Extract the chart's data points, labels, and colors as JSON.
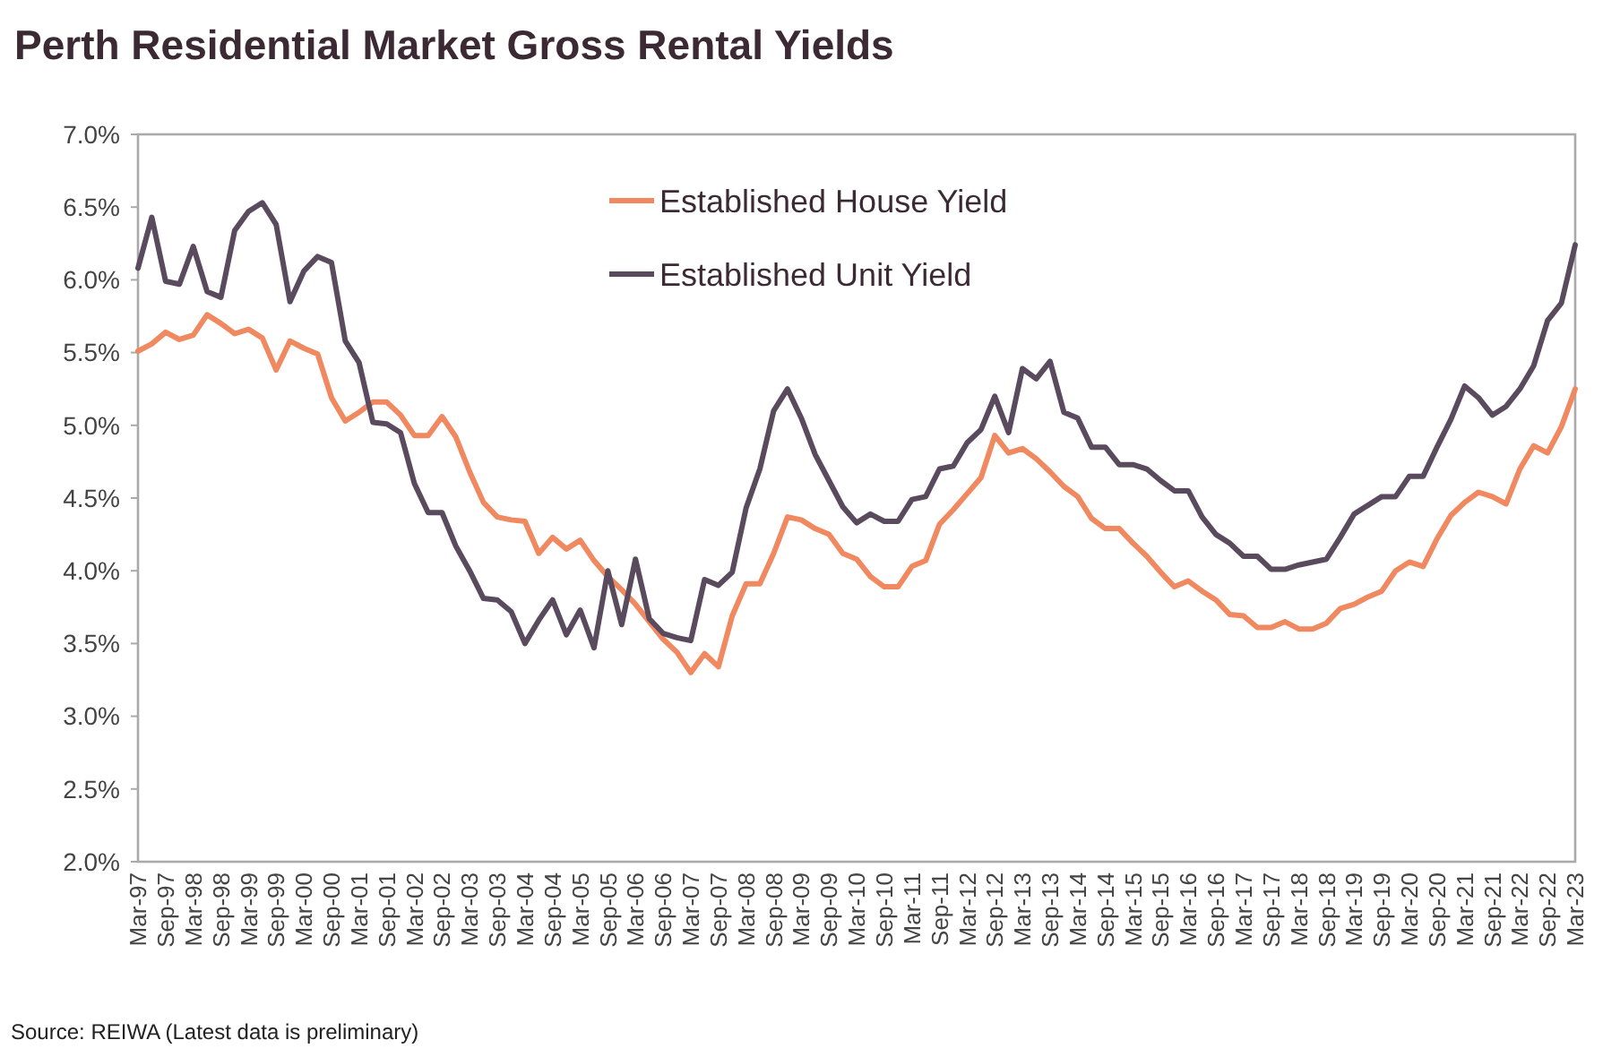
{
  "chart_data": {
    "type": "line",
    "title": "Perth Residential Market Gross Rental Yields",
    "annotations": [
      "Source: REIWA (Latest data is preliminary)"
    ],
    "categories": [
      "Mar-97",
      null,
      "Sep-97",
      null,
      "Mar-98",
      null,
      "Sep-98",
      null,
      "Mar-99",
      null,
      "Sep-99",
      null,
      "Mar-00",
      null,
      "Sep-00",
      null,
      "Mar-01",
      null,
      "Sep-01",
      null,
      "Mar-02",
      null,
      "Sep-02",
      null,
      "Mar-03",
      null,
      "Sep-03",
      null,
      "Mar-04",
      null,
      "Sep-04",
      null,
      "Mar-05",
      null,
      "Sep-05",
      null,
      "Mar-06",
      null,
      "Sep-06",
      null,
      "Mar-07",
      null,
      "Sep-07",
      null,
      "Mar-08",
      null,
      "Sep-08",
      null,
      "Mar-09",
      null,
      "Sep-09",
      null,
      "Mar-10",
      null,
      "Sep-10",
      null,
      "Mar-11",
      null,
      "Sep-11",
      null,
      "Mar-12",
      null,
      "Sep-12",
      null,
      "Mar-13",
      null,
      "Sep-13",
      null,
      "Mar-14",
      null,
      "Sep-14",
      null,
      "Mar-15",
      null,
      "Sep-15",
      null,
      "Mar-16",
      null,
      "Sep-16",
      null,
      "Mar-17",
      null,
      "Sep-17",
      null,
      "Mar-18",
      null,
      "Sep-18",
      null,
      "Mar-19",
      null,
      "Sep-19",
      null,
      "Mar-20",
      null,
      "Sep-20",
      null,
      "Mar-21",
      null,
      "Sep-21",
      null,
      "Mar-22",
      null,
      "Sep-22",
      null,
      "Mar-23"
    ],
    "series": [
      {
        "name": "Established House Yield",
        "color": "#f08860",
        "values": [
          5.51,
          5.56,
          5.64,
          5.59,
          5.62,
          5.76,
          5.7,
          5.63,
          5.66,
          5.6,
          5.38,
          5.58,
          5.53,
          5.49,
          5.19,
          5.03,
          5.09,
          5.16,
          5.16,
          5.07,
          4.93,
          4.93,
          5.06,
          4.92,
          4.68,
          4.47,
          4.37,
          4.35,
          4.34,
          4.12,
          4.23,
          4.15,
          4.21,
          4.07,
          3.96,
          3.87,
          3.77,
          3.65,
          3.53,
          3.44,
          3.3,
          3.43,
          3.34,
          3.69,
          3.91,
          3.91,
          4.12,
          4.37,
          4.35,
          4.29,
          4.25,
          4.12,
          4.08,
          3.96,
          3.89,
          3.89,
          4.03,
          4.07,
          4.32,
          4.42,
          4.53,
          4.64,
          4.93,
          4.81,
          4.84,
          4.77,
          4.68,
          4.58,
          4.51,
          4.36,
          4.29,
          4.29,
          4.19,
          4.1,
          3.99,
          3.89,
          3.93,
          3.86,
          3.8,
          3.7,
          3.69,
          3.61,
          3.61,
          3.65,
          3.6,
          3.6,
          3.64,
          3.74,
          3.77,
          3.82,
          3.86,
          4.0,
          4.06,
          4.03,
          4.22,
          4.38,
          4.47,
          4.54,
          4.51,
          4.46,
          4.7,
          4.86,
          4.81,
          4.99,
          5.25
        ]
      },
      {
        "name": "Established Unit Yield",
        "color": "#594a5d",
        "values": [
          6.08,
          6.43,
          5.99,
          5.97,
          6.23,
          5.92,
          5.88,
          6.34,
          6.47,
          6.53,
          6.38,
          5.85,
          6.06,
          6.16,
          6.12,
          5.58,
          5.43,
          5.02,
          5.01,
          4.95,
          4.6,
          4.4,
          4.4,
          4.17,
          4.0,
          3.81,
          3.8,
          3.72,
          3.5,
          3.66,
          3.8,
          3.56,
          3.73,
          3.47,
          4.0,
          3.63,
          4.08,
          3.67,
          3.57,
          3.54,
          3.52,
          3.94,
          3.9,
          3.99,
          4.43,
          4.7,
          5.1,
          5.25,
          5.05,
          4.8,
          4.62,
          4.44,
          4.33,
          4.39,
          4.34,
          4.34,
          4.49,
          4.51,
          4.7,
          4.72,
          4.88,
          4.97,
          5.2,
          4.95,
          5.39,
          5.32,
          5.44,
          5.09,
          5.05,
          4.85,
          4.85,
          4.73,
          4.73,
          4.7,
          4.62,
          4.55,
          4.55,
          4.37,
          4.25,
          4.19,
          4.1,
          4.1,
          4.01,
          4.01,
          4.04,
          4.06,
          4.08,
          4.23,
          4.39,
          4.45,
          4.51,
          4.51,
          4.65,
          4.65,
          4.85,
          5.04,
          5.27,
          5.19,
          5.07,
          5.13,
          5.25,
          5.41,
          5.72,
          5.84,
          6.24
        ]
      }
    ],
    "ylim": [
      2,
      7
    ],
    "yticks": [
      {
        "value": 2,
        "label": "2.0%"
      },
      {
        "value": 2.5,
        "label": "2.5%"
      },
      {
        "value": 3,
        "label": "3.0%"
      },
      {
        "value": 3.5,
        "label": "3.5%"
      },
      {
        "value": 4,
        "label": "4.0%"
      },
      {
        "value": 4.5,
        "label": "4.5%"
      },
      {
        "value": 5,
        "label": "5.0%"
      },
      {
        "value": 5.5,
        "label": "5.5%"
      },
      {
        "value": 6,
        "label": "6.0%"
      },
      {
        "value": 6.5,
        "label": "6.5%"
      },
      {
        "value": 7,
        "label": "7.0%"
      }
    ],
    "grid": false,
    "legend": "top",
    "marker": "none",
    "line_style": "solid"
  }
}
